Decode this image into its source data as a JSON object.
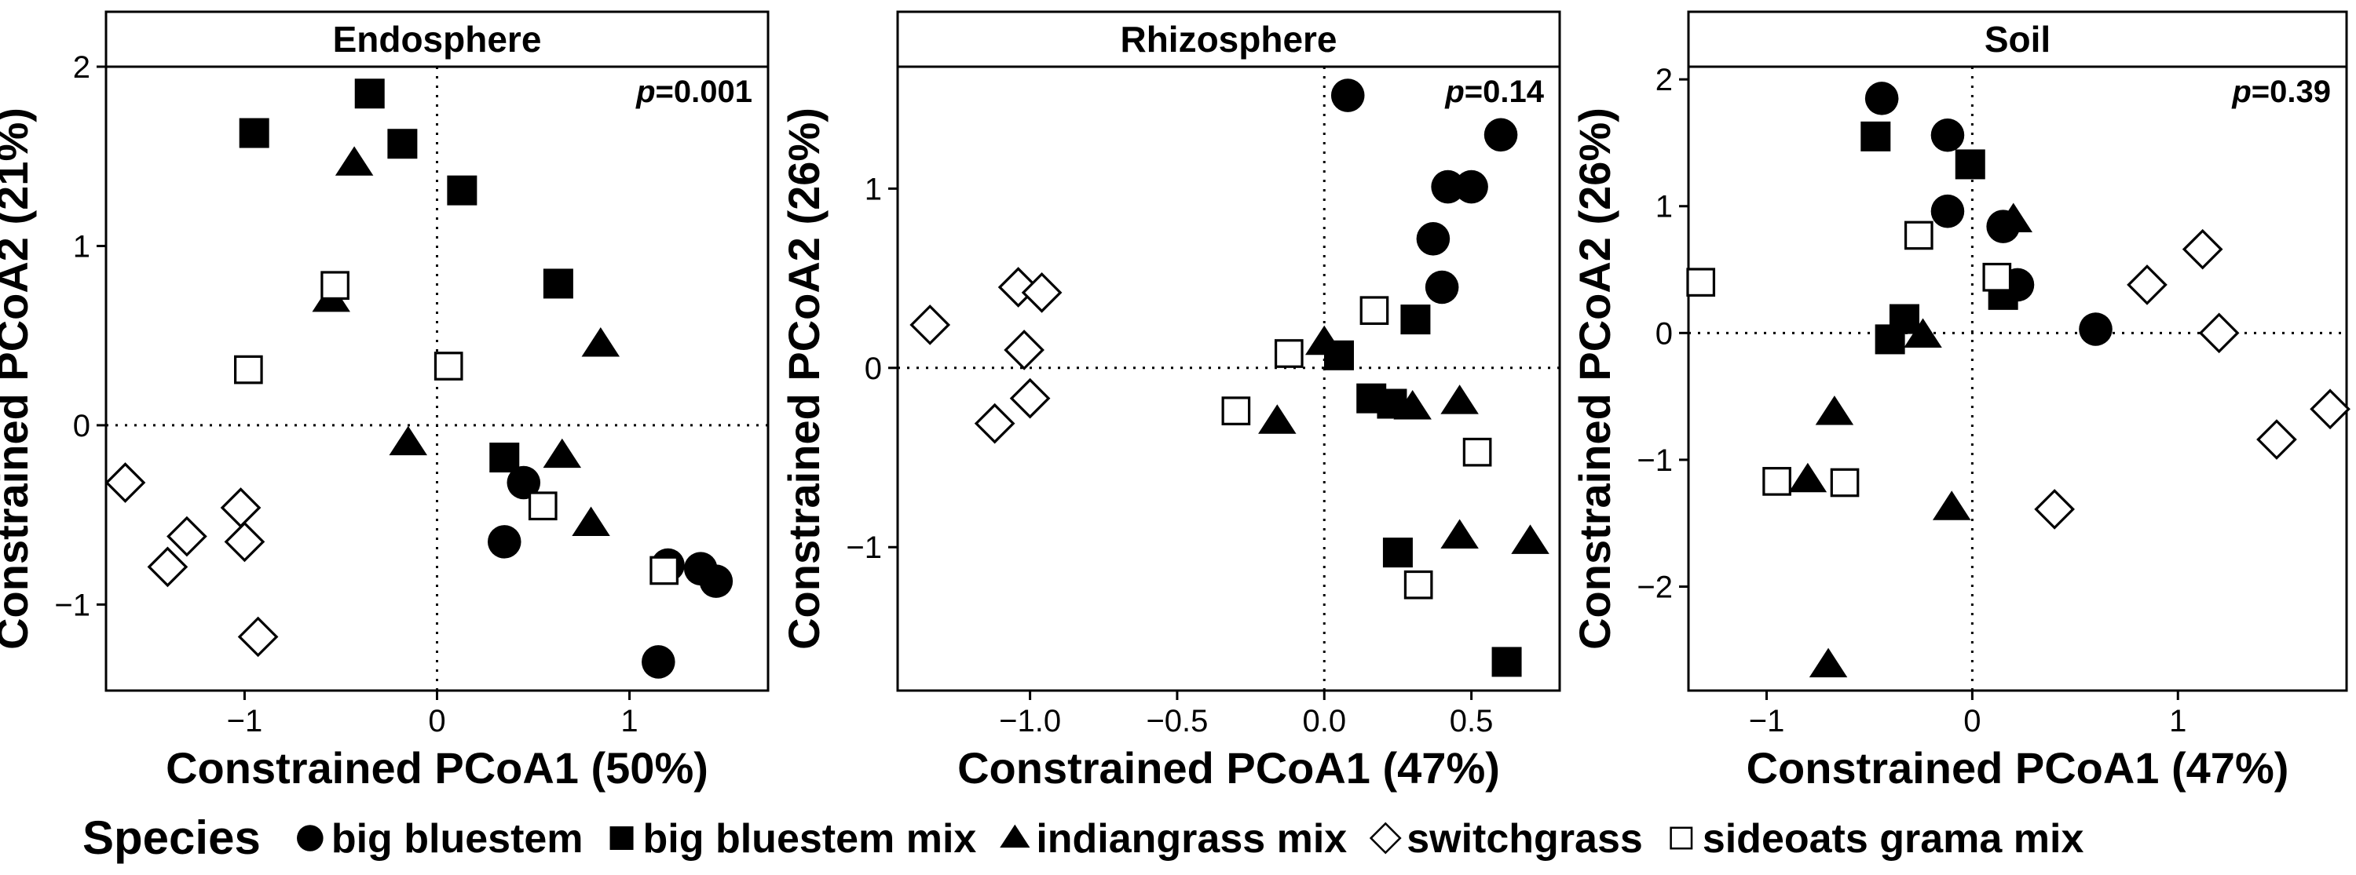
{
  "chart_data": [
    {
      "type": "scatter",
      "title": "Endosphere",
      "annotation": {
        "label": "p",
        "value": "=0.001"
      },
      "xlabel": "Constrained PCoA1 (50%)",
      "ylabel": "Constrained PCoA2 (21%)",
      "xlim": [
        -1.72,
        1.72
      ],
      "ylim": [
        -1.48,
        2.0
      ],
      "xticks": [
        -1,
        0,
        1
      ],
      "yticks": [
        -1,
        0,
        1,
        2
      ],
      "xtick_labels": [
        "−1",
        "0",
        "1"
      ],
      "ytick_labels": [
        "−1",
        "0",
        "1",
        "2"
      ],
      "series": [
        {
          "name": "big bluestem",
          "points": [
            [
              0.35,
              -0.65
            ],
            [
              0.45,
              -0.32
            ],
            [
              1.15,
              -1.32
            ],
            [
              1.2,
              -0.78
            ],
            [
              1.37,
              -0.8
            ],
            [
              1.45,
              -0.87
            ]
          ]
        },
        {
          "name": "big bluestem mix",
          "points": [
            [
              -0.35,
              1.85
            ],
            [
              -0.95,
              1.63
            ],
            [
              -0.18,
              1.57
            ],
            [
              0.13,
              1.31
            ],
            [
              0.63,
              0.79
            ],
            [
              0.35,
              -0.18
            ]
          ]
        },
        {
          "name": "indiangrass mix",
          "points": [
            [
              -0.43,
              1.46
            ],
            [
              -0.55,
              0.7
            ],
            [
              0.85,
              0.45
            ],
            [
              -0.15,
              -0.1
            ],
            [
              0.65,
              -0.17
            ],
            [
              0.8,
              -0.55
            ]
          ]
        },
        {
          "name": "switchgrass",
          "points": [
            [
              -1.62,
              -0.32
            ],
            [
              -1.02,
              -0.46
            ],
            [
              -1.3,
              -0.62
            ],
            [
              -1.0,
              -0.65
            ],
            [
              -1.4,
              -0.79
            ],
            [
              -0.93,
              -1.18
            ]
          ]
        },
        {
          "name": "sideoats grama mix",
          "points": [
            [
              -0.53,
              0.78
            ],
            [
              -0.98,
              0.31
            ],
            [
              0.06,
              0.33
            ],
            [
              0.55,
              -0.45
            ],
            [
              1.18,
              -0.81
            ]
          ]
        }
      ]
    },
    {
      "type": "scatter",
      "title": "Rhizosphere",
      "annotation": {
        "label": "p",
        "value": "=0.14"
      },
      "xlabel": "Constrained PCoA1 (47%)",
      "ylabel": "Constrained PCoA2 (26%)",
      "xlim": [
        -1.45,
        0.8
      ],
      "ylim": [
        -1.8,
        1.68
      ],
      "xticks": [
        -1.0,
        -0.5,
        0.0,
        0.5
      ],
      "yticks": [
        -1,
        0,
        1
      ],
      "xtick_labels": [
        "−1.0",
        "−0.5",
        "0.0",
        "0.5"
      ],
      "ytick_labels": [
        "−1",
        "0",
        "1"
      ],
      "series": [
        {
          "name": "big bluestem",
          "points": [
            [
              0.08,
              1.52
            ],
            [
              0.6,
              1.3
            ],
            [
              0.42,
              1.01
            ],
            [
              0.5,
              1.01
            ],
            [
              0.37,
              0.72
            ],
            [
              0.4,
              0.45
            ]
          ]
        },
        {
          "name": "big bluestem mix",
          "points": [
            [
              0.31,
              0.27
            ],
            [
              0.05,
              0.07
            ],
            [
              0.16,
              -0.17
            ],
            [
              0.23,
              -0.2
            ],
            [
              0.25,
              -1.03
            ],
            [
              0.62,
              -1.64
            ]
          ]
        },
        {
          "name": "indiangrass mix",
          "points": [
            [
              0.0,
              0.14
            ],
            [
              -0.16,
              -0.3
            ],
            [
              0.3,
              -0.22
            ],
            [
              0.46,
              -0.19
            ],
            [
              0.46,
              -0.94
            ],
            [
              0.7,
              -0.97
            ]
          ]
        },
        {
          "name": "switchgrass",
          "points": [
            [
              -1.34,
              0.24
            ],
            [
              -1.04,
              0.45
            ],
            [
              -0.96,
              0.42
            ],
            [
              -1.02,
              0.1
            ],
            [
              -1.0,
              -0.17
            ],
            [
              -1.12,
              -0.31
            ]
          ]
        },
        {
          "name": "sideoats grama mix",
          "points": [
            [
              0.17,
              0.32
            ],
            [
              -0.12,
              0.08
            ],
            [
              -0.3,
              -0.24
            ],
            [
              0.52,
              -0.47
            ],
            [
              0.32,
              -1.21
            ]
          ]
        }
      ]
    },
    {
      "type": "scatter",
      "title": "Soil",
      "annotation": {
        "label": "p",
        "value": "=0.39"
      },
      "xlabel": "Constrained PCoA1 (47%)",
      "ylabel": "Constrained PCoA2 (26%)",
      "xlim": [
        -1.38,
        1.82
      ],
      "ylim": [
        -2.82,
        2.1
      ],
      "xticks": [
        -1,
        0,
        1
      ],
      "yticks": [
        -2,
        -1,
        0,
        1,
        2
      ],
      "xtick_labels": [
        "−1",
        "0",
        "1"
      ],
      "ytick_labels": [
        "−2",
        "−1",
        "0",
        "1",
        "2"
      ],
      "series": [
        {
          "name": "big bluestem",
          "points": [
            [
              -0.44,
              1.85
            ],
            [
              -0.12,
              1.56
            ],
            [
              -0.12,
              0.96
            ],
            [
              0.15,
              0.84
            ],
            [
              0.22,
              0.38
            ],
            [
              0.6,
              0.03
            ]
          ]
        },
        {
          "name": "big bluestem mix",
          "points": [
            [
              -0.47,
              1.55
            ],
            [
              -0.01,
              1.33
            ],
            [
              0.15,
              0.3
            ],
            [
              -0.33,
              0.11
            ],
            [
              -0.4,
              -0.05
            ]
          ]
        },
        {
          "name": "indiangrass mix",
          "points": [
            [
              0.2,
              0.89
            ],
            [
              -0.24,
              -0.02
            ],
            [
              -0.67,
              -0.63
            ],
            [
              -0.8,
              -1.16
            ],
            [
              -0.1,
              -1.38
            ],
            [
              -0.7,
              -2.62
            ]
          ]
        },
        {
          "name": "switchgrass",
          "points": [
            [
              0.85,
              0.38
            ],
            [
              1.12,
              0.66
            ],
            [
              1.2,
              0.0
            ],
            [
              1.74,
              -0.6
            ],
            [
              1.48,
              -0.84
            ],
            [
              0.4,
              -1.39
            ]
          ]
        },
        {
          "name": "sideoats grama mix",
          "points": [
            [
              -1.32,
              0.4
            ],
            [
              -0.26,
              0.77
            ],
            [
              0.12,
              0.44
            ],
            [
              -0.95,
              -1.17
            ],
            [
              -0.62,
              -1.18
            ]
          ]
        }
      ]
    }
  ],
  "legend": {
    "title": "Species",
    "items": [
      {
        "label": "big bluestem",
        "shape": "circle-filled"
      },
      {
        "label": "big bluestem mix",
        "shape": "square-filled"
      },
      {
        "label": "indiangrass mix",
        "shape": "triangle-filled"
      },
      {
        "label": "switchgrass",
        "shape": "diamond-open"
      },
      {
        "label": "sideoats grama mix",
        "shape": "square-open"
      }
    ]
  },
  "colors": {
    "marker": "#000000",
    "background": "#ffffff",
    "refline": "#000000"
  }
}
